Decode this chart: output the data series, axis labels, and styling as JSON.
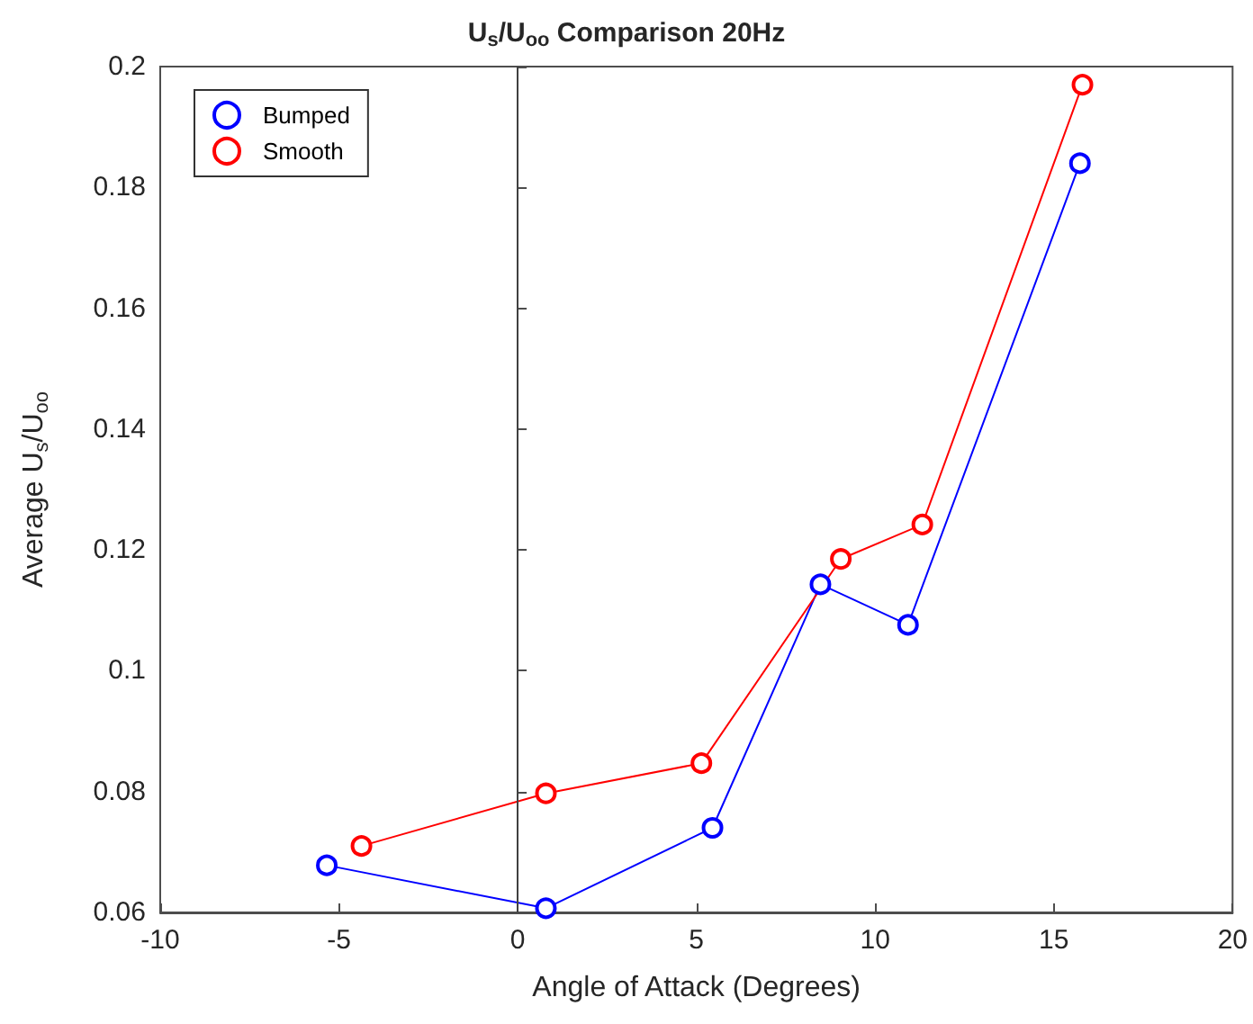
{
  "chart_data": {
    "type": "line",
    "title": "U$_{s}$/U$_{oo}$ Comparison 20Hz",
    "xlabel": "Angle of Attack (Degrees)",
    "ylabel": "Average U$_{s}$/U$_{oo}$",
    "series": [
      {
        "name": "Bumped",
        "color": "#0000ff",
        "x": [
          -5.34,
          0.79,
          5.45,
          8.47,
          10.92,
          15.73
        ],
        "values": [
          0.0678,
          0.0607,
          0.074,
          0.1143,
          0.1076,
          0.184
        ]
      },
      {
        "name": "Smooth",
        "color": "#ff0000",
        "x": [
          -4.37,
          0.79,
          5.14,
          9.04,
          11.32,
          15.8
        ],
        "values": [
          0.071,
          0.0797,
          0.0847,
          0.1185,
          0.1242,
          0.197
        ]
      }
    ],
    "xlim": [
      -10,
      20
    ],
    "xticks": [
      -10,
      -5,
      0,
      5,
      10,
      15,
      20
    ],
    "ylim": [
      0.06,
      0.2
    ],
    "yticks": [
      0.06,
      0.08,
      0.1,
      0.12,
      0.14,
      0.16,
      0.18,
      0.2
    ],
    "ref_lines": [
      {
        "axis": "x",
        "value": 0,
        "color": "#404040"
      }
    ],
    "grid": false,
    "legend": "top left",
    "marker": "circle",
    "line_style": "solid"
  }
}
